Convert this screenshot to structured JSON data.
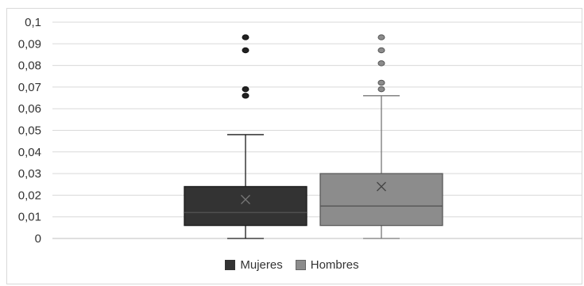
{
  "chart_data": {
    "type": "box",
    "title": "",
    "xlabel": "",
    "ylabel": "",
    "ylim": [
      0,
      0.1
    ],
    "ytick_labels": [
      "0",
      "0,01",
      "0,02",
      "0,03",
      "0,04",
      "0,05",
      "0,06",
      "0,07",
      "0,08",
      "0,09",
      "0,1"
    ],
    "grid": true,
    "legend_position": "bottom",
    "series": [
      {
        "name": "Mujeres",
        "color": "#333333",
        "min": 0,
        "q1": 0.006,
        "median": 0.012,
        "q3": 0.024,
        "max": 0.048,
        "mean": 0.018,
        "outliers": [
          0.066,
          0.069,
          0.087,
          0.093
        ]
      },
      {
        "name": "Hombres",
        "color": "#8c8c8c",
        "min": 0,
        "q1": 0.006,
        "median": 0.015,
        "q3": 0.03,
        "max": 0.066,
        "mean": 0.024,
        "outliers": [
          0.069,
          0.072,
          0.081,
          0.087,
          0.093
        ]
      }
    ]
  }
}
